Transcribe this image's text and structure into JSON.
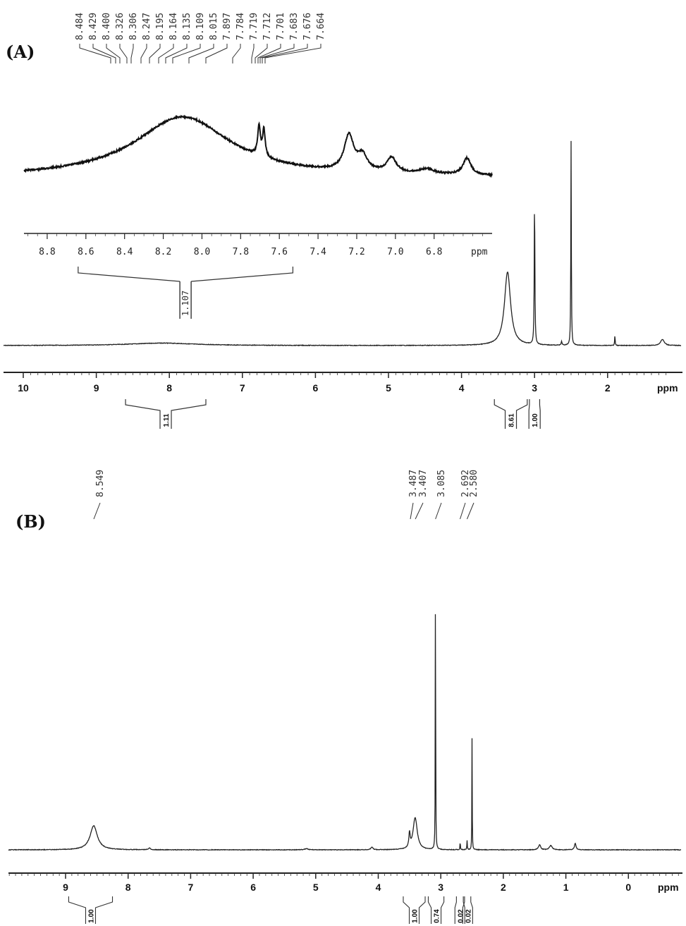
{
  "chart_data": [
    {
      "id": "A",
      "type": "line",
      "panel_label": "(A)",
      "xlabel": "ppm",
      "x_reversed": true,
      "xlim": [
        10.3,
        1.0
      ],
      "ticks": [
        10,
        9,
        8,
        7,
        6,
        5,
        4,
        3,
        2
      ],
      "tick_labels": [
        "10",
        "9",
        "8",
        "7",
        "6",
        "5",
        "4",
        "3",
        "2"
      ],
      "peaks": [
        {
          "ppm": 8.1,
          "height": 0.012,
          "width": 0.55
        },
        {
          "ppm": 3.37,
          "height": 0.36,
          "width": 0.05
        },
        {
          "ppm": 3.0,
          "height": 0.73,
          "width": 0.005
        },
        {
          "ppm": 2.63,
          "height": 0.02,
          "width": 0.006
        },
        {
          "ppm": 2.5,
          "height": 1.0,
          "width": 0.004
        },
        {
          "ppm": 1.9,
          "height": 0.05,
          "width": 0.004
        },
        {
          "ppm": 1.25,
          "height": 0.03,
          "width": 0.03
        }
      ],
      "integrals": [
        {
          "label": "1.11",
          "from": 8.6,
          "to": 7.5
        },
        {
          "label": "8.61",
          "from": 3.55,
          "to": 3.1
        },
        {
          "label": "1.00",
          "from": 3.07,
          "to": 2.93
        }
      ],
      "peak_labels": [
        "8.484",
        "8.429",
        "8.400",
        "8.326",
        "8.306",
        "8.247",
        "8.195",
        "8.164",
        "8.135",
        "8.109",
        "8.015",
        "7.897",
        "7.784",
        "7.719",
        "7.712",
        "7.701",
        "7.683",
        "7.676",
        "7.664"
      ],
      "inset": {
        "xlabel": "ppm",
        "xlim": [
          8.92,
          6.5
        ],
        "ticks": [
          8.8,
          8.6,
          8.4,
          8.2,
          8.0,
          7.8,
          7.6,
          7.4,
          7.2,
          7.0,
          6.8
        ],
        "tick_labels": [
          "8.8",
          "8.6",
          "8.4",
          "8.2",
          "8.0",
          "7.8",
          "7.6",
          "7.4",
          "7.2",
          "7.0",
          "6.8"
        ],
        "peaks": [
          {
            "ppm": 8.1,
            "height": 0.72,
            "width": 0.3
          },
          {
            "ppm": 7.705,
            "height": 0.35,
            "width": 0.008
          },
          {
            "ppm": 7.68,
            "height": 0.32,
            "width": 0.008
          },
          {
            "ppm": 7.24,
            "height": 0.42,
            "width": 0.03
          },
          {
            "ppm": 7.17,
            "height": 0.18,
            "width": 0.03
          },
          {
            "ppm": 7.02,
            "height": 0.18,
            "width": 0.03
          },
          {
            "ppm": 6.84,
            "height": 0.06,
            "width": 0.05
          },
          {
            "ppm": 6.63,
            "height": 0.2,
            "width": 0.025
          }
        ],
        "integral": {
          "label": "1.107",
          "from": 8.64,
          "to": 7.53
        }
      }
    },
    {
      "id": "B",
      "type": "line",
      "panel_label": "(B)",
      "xlabel": "ppm",
      "x_reversed": true,
      "xlim": [
        10.0,
        -0.75
      ],
      "ticks": [
        9,
        8,
        7,
        6,
        5,
        4,
        3,
        2,
        1,
        0
      ],
      "tick_labels": [
        "9",
        "8",
        "7",
        "6",
        "5",
        "4",
        "3",
        "2",
        "1",
        "0"
      ],
      "peaks": [
        {
          "ppm": 8.55,
          "height": 0.075,
          "width": 0.07
        },
        {
          "ppm": 7.66,
          "height": 0.005,
          "width": 0.02
        },
        {
          "ppm": 5.15,
          "height": 0.004,
          "width": 0.03
        },
        {
          "ppm": 4.1,
          "height": 0.008,
          "width": 0.02
        },
        {
          "ppm": 3.5,
          "height": 0.045,
          "width": 0.012
        },
        {
          "ppm": 3.41,
          "height": 0.1,
          "width": 0.04
        },
        {
          "ppm": 3.085,
          "height": 1.0,
          "width": 0.003
        },
        {
          "ppm": 2.69,
          "height": 0.025,
          "width": 0.004
        },
        {
          "ppm": 2.58,
          "height": 0.03,
          "width": 0.004
        },
        {
          "ppm": 2.5,
          "height": 0.36,
          "width": 0.003
        },
        {
          "ppm": 1.42,
          "height": 0.016,
          "width": 0.02
        },
        {
          "ppm": 1.24,
          "height": 0.014,
          "width": 0.025
        },
        {
          "ppm": 0.85,
          "height": 0.02,
          "width": 0.015
        }
      ],
      "integrals": [
        {
          "label": "1.00",
          "from": 8.95,
          "to": 8.25
        },
        {
          "label": "1.00",
          "from": 3.6,
          "to": 3.25
        },
        {
          "label": "0.74",
          "from": 3.2,
          "to": 2.95
        },
        {
          "label": "0.02",
          "from": 2.75,
          "to": 2.64
        },
        {
          "label": "0.02",
          "from": 2.62,
          "to": 2.52
        }
      ],
      "peak_labels": [
        {
          "ppm": 8.549,
          "label": "8.549"
        },
        {
          "ppm": 3.487,
          "label": "3.487"
        },
        {
          "ppm": 3.407,
          "label": "3.407"
        },
        {
          "ppm": 3.085,
          "label": "3.085"
        },
        {
          "ppm": 2.692,
          "label": "2.692"
        },
        {
          "ppm": 2.58,
          "label": "2.580"
        }
      ]
    }
  ]
}
